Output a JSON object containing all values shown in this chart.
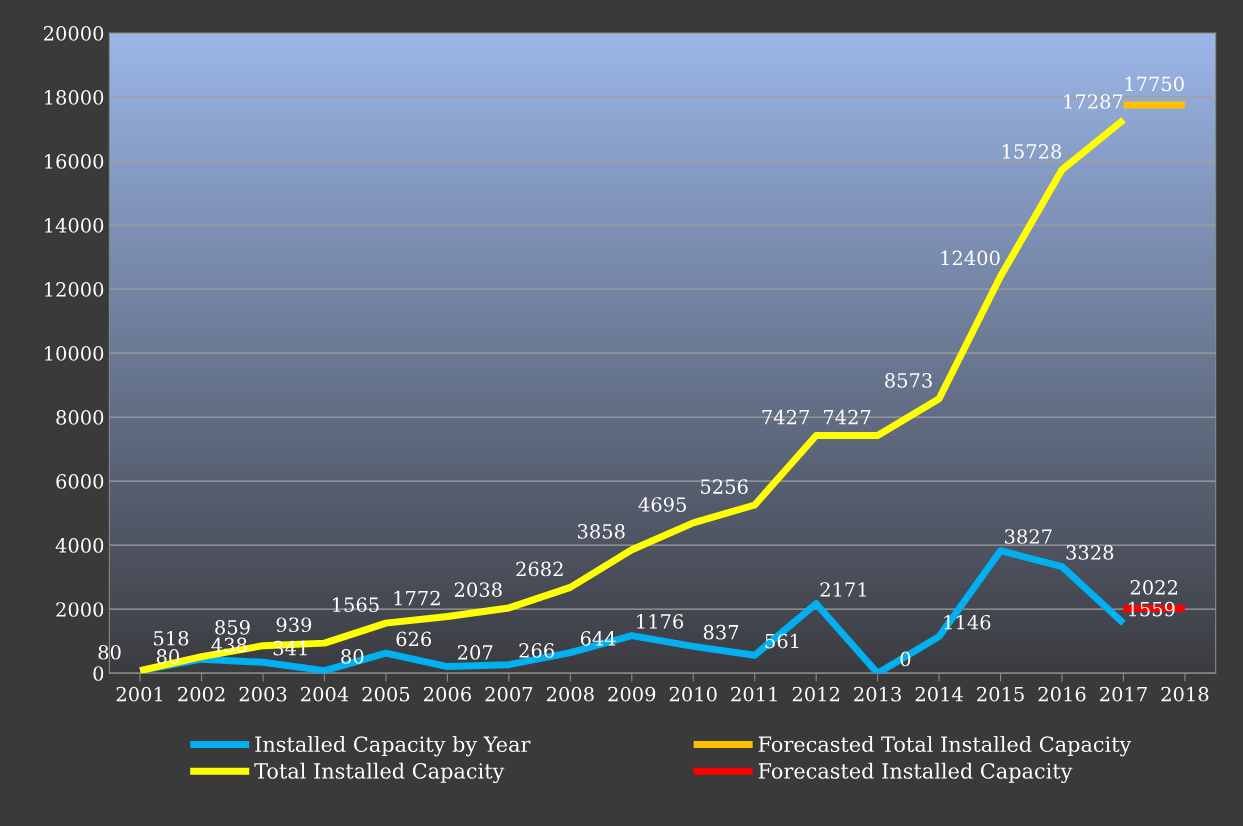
{
  "chart_data": {
    "type": "line",
    "categories": [
      "2001",
      "2002",
      "2003",
      "2004",
      "2005",
      "2006",
      "2007",
      "2008",
      "2009",
      "2010",
      "2011",
      "2012",
      "2013",
      "2014",
      "2015",
      "2016",
      "2017",
      "2018"
    ],
    "series": [
      {
        "name": "Installed Capacity by Year",
        "color": "#00b0f0",
        "values": [
          80,
          438,
          341,
          80,
          626,
          207,
          266,
          644,
          1176,
          837,
          561,
          2171,
          0,
          1146,
          3827,
          3328,
          1559,
          null
        ],
        "value_labels": [
          "80",
          "438",
          "341",
          "80",
          "626",
          "207",
          "266",
          "644",
          "1176",
          "837",
          "561",
          "2171",
          "0",
          "1146",
          "3827",
          "3328",
          "1559",
          null
        ]
      },
      {
        "name": "Total Installed Capacity",
        "color": "#ffff00",
        "values": [
          80,
          518,
          859,
          939,
          1565,
          1772,
          2038,
          2682,
          3858,
          4695,
          5256,
          7427,
          7427,
          8573,
          12400,
          15728,
          17287,
          null
        ],
        "value_labels": [
          "80",
          "518",
          "859",
          "939",
          "1565",
          "1772",
          "2038",
          "2682",
          "3858",
          "4695",
          "5256",
          "7427",
          "7427",
          "8573",
          "12400",
          "15728",
          "17287",
          null
        ]
      },
      {
        "name": "Forecasted Total Installed Capacity",
        "color": "#ffc000",
        "values": [
          null,
          null,
          null,
          null,
          null,
          null,
          null,
          null,
          null,
          null,
          null,
          null,
          null,
          null,
          null,
          null,
          17750,
          17750
        ],
        "value_labels": [
          null,
          null,
          null,
          null,
          null,
          null,
          null,
          null,
          null,
          null,
          null,
          null,
          null,
          null,
          null,
          null,
          "17750",
          null
        ]
      },
      {
        "name": "Forecasted Installed Capacity",
        "color": "#ff0000",
        "values": [
          null,
          null,
          null,
          null,
          null,
          null,
          null,
          null,
          null,
          null,
          null,
          null,
          null,
          null,
          null,
          null,
          2022,
          2022
        ],
        "value_labels": [
          null,
          null,
          null,
          null,
          null,
          null,
          null,
          null,
          null,
          null,
          null,
          null,
          null,
          null,
          null,
          null,
          "2022",
          null
        ]
      }
    ],
    "ylim": [
      0,
      20000
    ],
    "yticks": [
      0,
      2000,
      4000,
      6000,
      8000,
      10000,
      12000,
      14000,
      16000,
      18000,
      20000
    ],
    "grid": "y",
    "legend": "bottom",
    "marker": "none",
    "line_style": "solid"
  }
}
